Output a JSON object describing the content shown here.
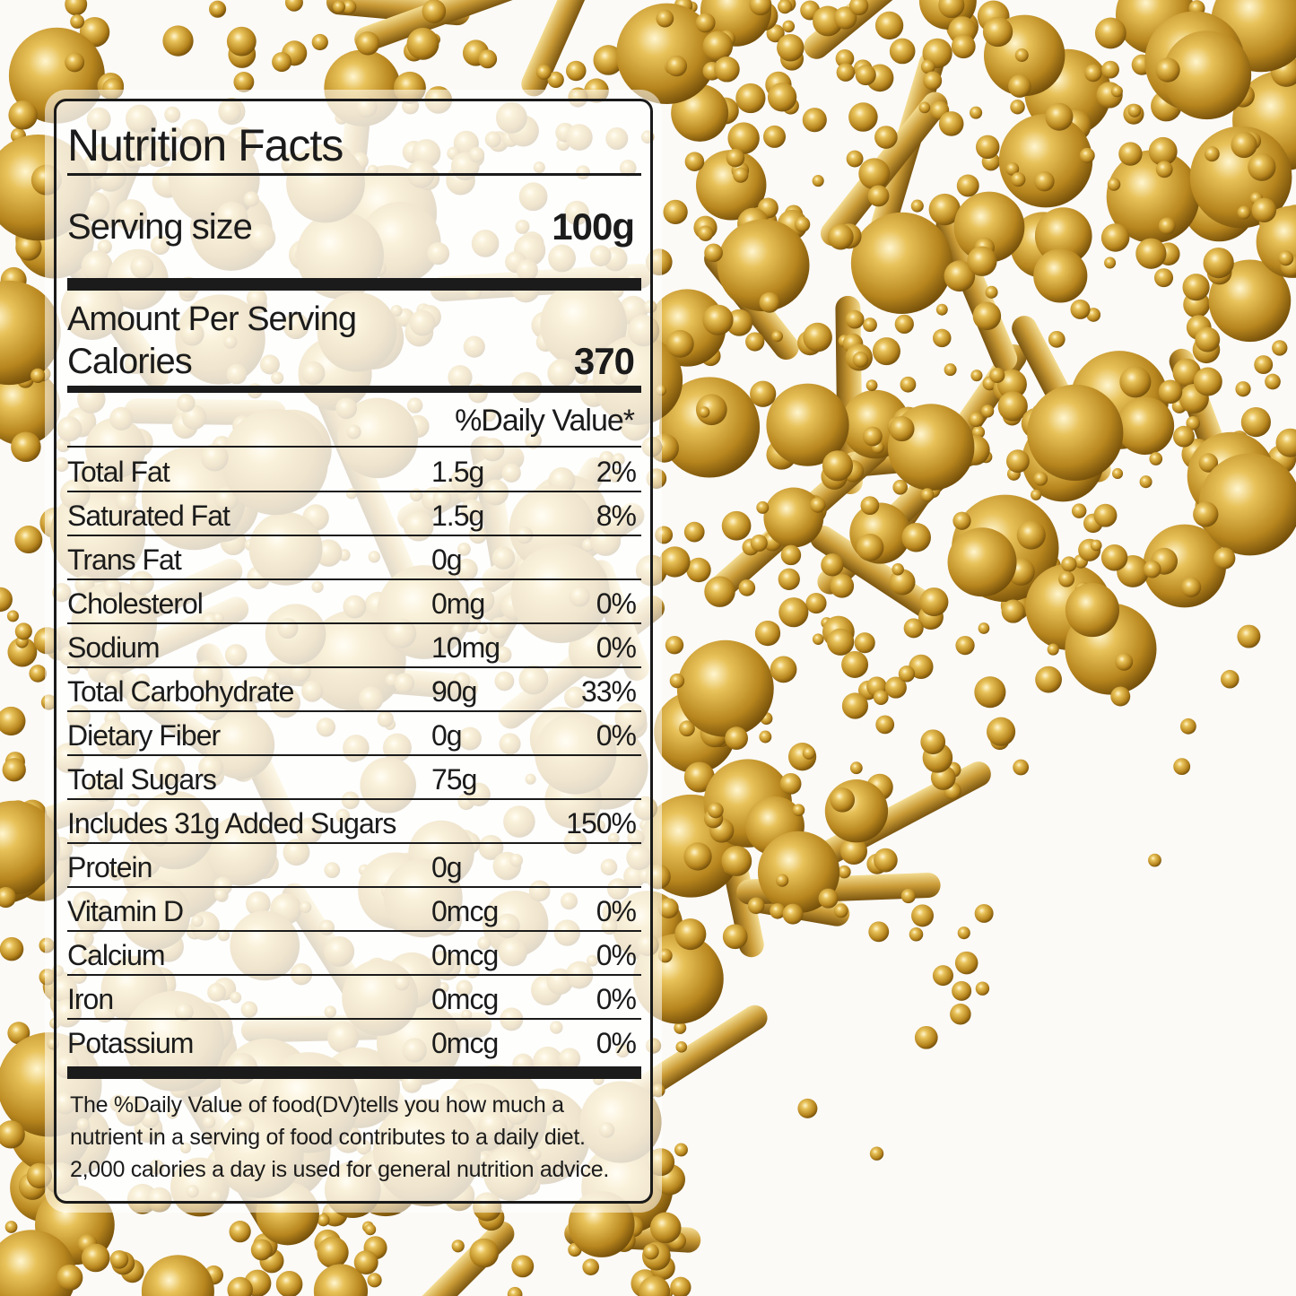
{
  "title": "Nutrition Facts",
  "serving_label": "Serving size",
  "serving_value": "100g",
  "amount_per_serving": "Amount Per Serving",
  "calories_label": "Calories",
  "calories_value": "370",
  "daily_value_header": "%Daily Value*",
  "rows": [
    {
      "name": "Total Fat",
      "amount": "1.5g",
      "dv": "2%"
    },
    {
      "name": "Saturated Fat",
      "amount": "1.5g",
      "dv": "8%"
    },
    {
      "name": "Trans Fat",
      "amount": "0g"
    },
    {
      "name": "Cholesterol",
      "amount": "0mg",
      "dv": "0%"
    },
    {
      "name": "Sodium",
      "amount": "10mg",
      "dv": "0%"
    },
    {
      "name": "Total Carbohydrate",
      "amount": "90g",
      "dv": "33%"
    },
    {
      "name": "Dietary Fiber",
      "amount": "0g",
      "dv": "0%"
    },
    {
      "name": "Total Sugars",
      "amount": "75g"
    },
    {
      "name": "Includes 31g Added Sugars",
      "dv": "150%"
    },
    {
      "name": "Protein",
      "amount": "0g"
    },
    {
      "name": "Vitamin D",
      "amount": "0mcg",
      "dv": "0%"
    },
    {
      "name": "Calcium",
      "amount": "0mcg",
      "dv": "0%"
    },
    {
      "name": "Iron",
      "amount": "0mcg",
      "dv": "0%"
    },
    {
      "name": "Potassium",
      "amount": "0mcg",
      "dv": "0%"
    }
  ],
  "footnote": [
    "The %Daily Value of food(DV)tells you how much a",
    "nutrient in a serving of food contributes to a daily diet.",
    "2,000 calories a day is used for general nutrition advice."
  ]
}
